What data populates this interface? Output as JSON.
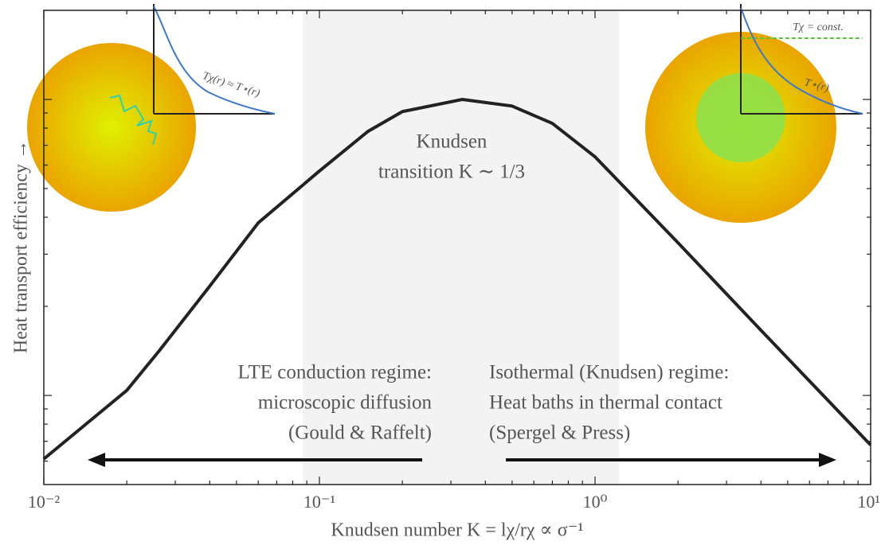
{
  "chart_data": {
    "type": "line",
    "ylabel": "Heat transport efficiency →",
    "xlabel": "Knudsen number K = lχ/rχ ∝ σ⁻¹",
    "x": [
      0.01,
      0.02,
      0.0263,
      0.04,
      0.06,
      0.1,
      0.15,
      0.2,
      0.33,
      0.5,
      0.7,
      1,
      2,
      4,
      10
    ],
    "series": [
      {
        "color": "#222222",
        "values": [
          0.61,
          1.04,
          1.42,
          2.34,
          3.83,
          5.73,
          7.8,
          9.1,
          10,
          9.5,
          8.3,
          6.4,
          3.28,
          1.66,
          0.68
        ]
      }
    ],
    "xscale": "log",
    "yscale": "log",
    "xlim": [
      0.01,
      10
    ],
    "ylim": [
      0.5,
      20
    ],
    "xticks": [
      {
        "value": 0.01,
        "label": "10⁻²"
      },
      {
        "value": 0.1,
        "label": "10⁻¹"
      },
      {
        "value": 1,
        "label": "10⁰"
      },
      {
        "value": 10,
        "label": "10¹"
      }
    ],
    "xminorticks": [
      0.02,
      0.03,
      0.04,
      0.05,
      0.06,
      0.07,
      0.08,
      0.09,
      0.2,
      0.3,
      0.4,
      0.5,
      0.6,
      0.7,
      0.8,
      0.9,
      2,
      3,
      4,
      5,
      6,
      7,
      8,
      9
    ],
    "yticks": [
      1,
      10
    ],
    "yminorticks": [
      0.6,
      0.7,
      0.8,
      0.9,
      2,
      3,
      4,
      5,
      6,
      7,
      8,
      9,
      20
    ],
    "shaded_region": [
      0.087,
      1.22
    ],
    "annotations": {
      "center": [
        "Knudsen",
        "transition K ∼ 1/3"
      ],
      "left": [
        "LTE conduction regime:",
        "microscopic diffusion",
        "(Gould & Raffelt)"
      ],
      "right": [
        "Isothermal (Knudsen) regime:",
        "Heat baths in thermal contact",
        "(Spergel & Press)"
      ],
      "inset_left": "Tχ(r) ≈ T⋆(r)",
      "inset_right_const": "Tχ = const.",
      "inset_right_star": "T⋆(r)"
    }
  }
}
